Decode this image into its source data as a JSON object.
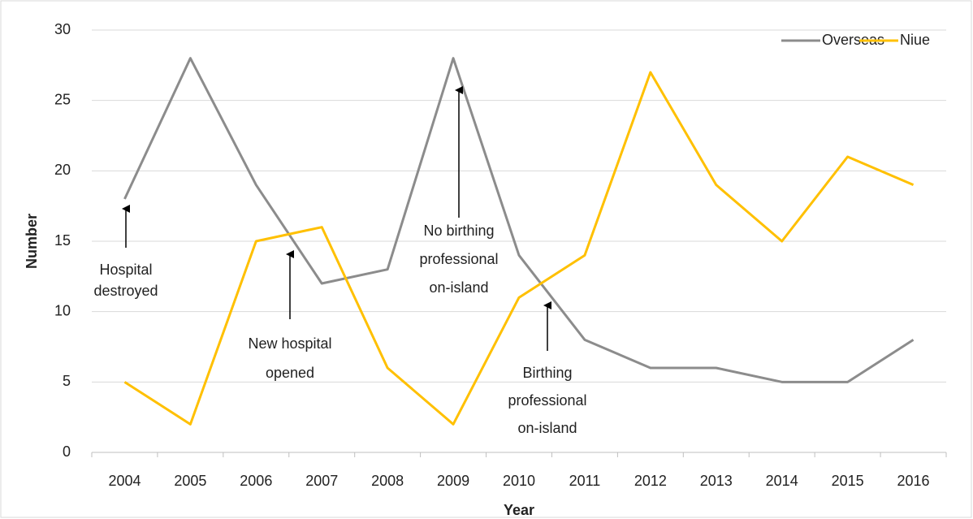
{
  "chart_data": {
    "type": "line",
    "x_label": "Year",
    "y_label": "Number",
    "categories": [
      "2004",
      "2005",
      "2006",
      "2007",
      "2008",
      "2009",
      "2010",
      "2011",
      "2012",
      "2013",
      "2014",
      "2015",
      "2016"
    ],
    "series": [
      {
        "name": "Overseas",
        "color": "#8c8c8c",
        "values": [
          18,
          28,
          19,
          12,
          13,
          28,
          14,
          8,
          6,
          6,
          5,
          5,
          8
        ]
      },
      {
        "name": "Niue",
        "color": "#ffc000",
        "values": [
          5,
          2,
          15,
          16,
          6,
          2,
          11,
          14,
          27,
          19,
          15,
          21,
          19
        ]
      }
    ],
    "ylim": [
      0,
      30
    ],
    "yticks": [
      0,
      5,
      10,
      15,
      20,
      25,
      30
    ],
    "grid": true,
    "legend": "top-right",
    "annotations": [
      {
        "lines": [
          "Hospital",
          "destroyed"
        ]
      },
      {
        "lines": [
          "New hospital",
          "opened"
        ]
      },
      {
        "lines": [
          "No birthing",
          "professional",
          "on-island"
        ]
      },
      {
        "lines": [
          "Birthing",
          "professional",
          "on-island"
        ]
      }
    ]
  }
}
